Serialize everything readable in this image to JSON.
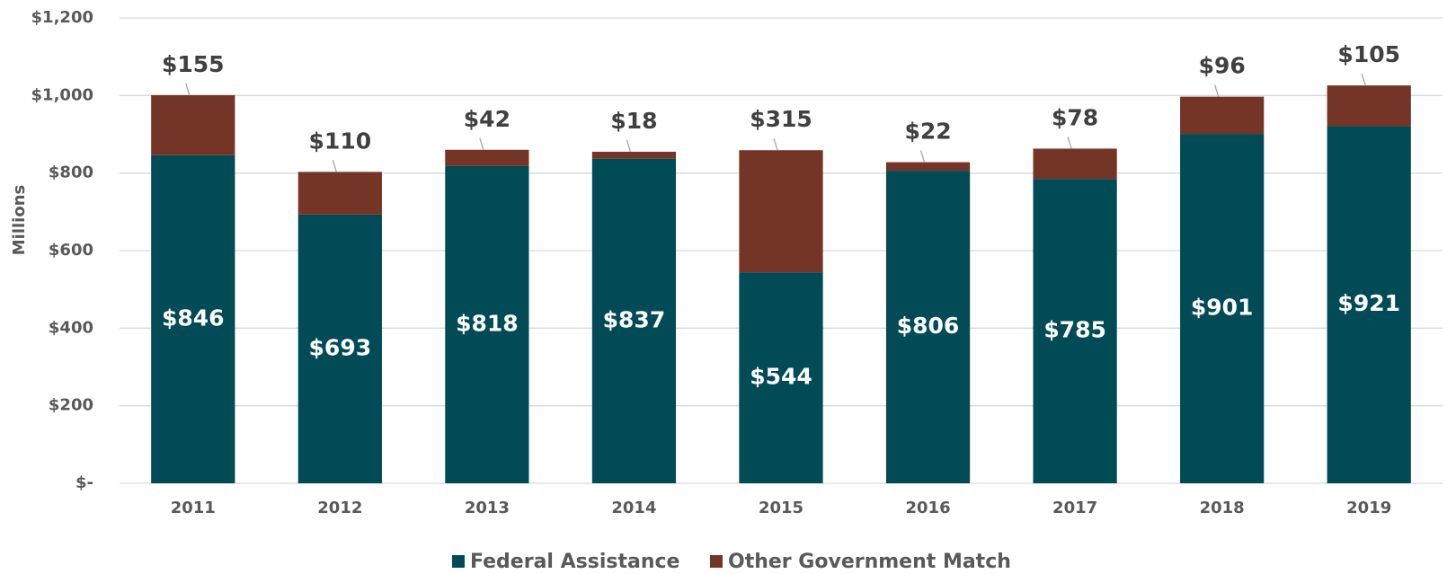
{
  "chart_data": {
    "type": "stacked_bar",
    "categories": [
      "2011",
      "2012",
      "2013",
      "2014",
      "2015",
      "2016",
      "2017",
      "2018",
      "2019"
    ],
    "series": [
      {
        "name": "Federal Assistance",
        "color": "#004b56",
        "values": [
          846,
          693,
          818,
          837,
          544,
          806,
          785,
          901,
          921
        ],
        "value_labels": [
          "$846",
          "$693",
          "$818",
          "$837",
          "$544",
          "$806",
          "$785",
          "$901",
          "$921"
        ]
      },
      {
        "name": "Other Government Match",
        "color": "#743526",
        "values": [
          155,
          110,
          42,
          18,
          315,
          22,
          78,
          96,
          105
        ],
        "value_labels": [
          "$155",
          "$110",
          "$42",
          "$18",
          "$315",
          "$22",
          "$78",
          "$96",
          "$105"
        ]
      }
    ],
    "ylabel": "Millions",
    "ylim": [
      0,
      1200
    ],
    "yticks": [
      {
        "value": 0,
        "label": "$-"
      },
      {
        "value": 200,
        "label": "$200"
      },
      {
        "value": 400,
        "label": "$400"
      },
      {
        "value": 600,
        "label": "$600"
      },
      {
        "value": 800,
        "label": "$800"
      },
      {
        "value": 1000,
        "label": "$1,000"
      },
      {
        "value": 1200,
        "label": "$1,200"
      }
    ],
    "grid": true
  }
}
